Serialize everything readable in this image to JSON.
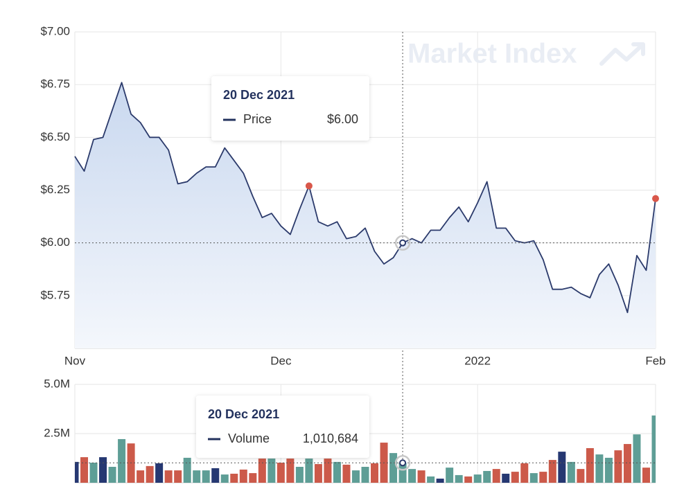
{
  "chart_data": [
    {
      "type": "line",
      "watermark": "Market Index",
      "categories": [
        "Nov",
        null,
        null,
        null,
        null,
        null,
        null,
        null,
        null,
        null,
        null,
        null,
        null,
        null,
        null,
        null,
        null,
        null,
        null,
        null,
        null,
        null,
        "Dec",
        null,
        null,
        null,
        null,
        null,
        null,
        null,
        null,
        null,
        null,
        null,
        null,
        null,
        null,
        null,
        null,
        null,
        null,
        null,
        null,
        "2022",
        null,
        null,
        null,
        null,
        null,
        null,
        null,
        null,
        null,
        null,
        null,
        null,
        null,
        null,
        null,
        null,
        null,
        null,
        "Feb"
      ],
      "series": [
        {
          "name": "Price",
          "color": "#2b3a6b",
          "values": [
            6.41,
            6.34,
            6.49,
            6.5,
            6.63,
            6.76,
            6.61,
            6.57,
            6.5,
            6.5,
            6.44,
            6.28,
            6.29,
            6.33,
            6.36,
            6.36,
            6.45,
            6.39,
            6.33,
            6.22,
            6.12,
            6.14,
            6.08,
            6.04,
            6.16,
            6.27,
            6.1,
            6.08,
            6.1,
            6.02,
            6.03,
            6.07,
            5.96,
            5.9,
            5.93,
            6.0,
            6.02,
            6.0,
            6.06,
            6.06,
            6.12,
            6.17,
            6.1,
            6.19,
            6.29,
            6.07,
            6.07,
            6.01,
            6.0,
            6.01,
            5.92,
            5.78,
            5.78,
            5.79,
            5.76,
            5.74,
            5.85,
            5.9,
            5.8,
            5.67,
            5.94,
            5.87,
            6.21
          ]
        }
      ],
      "highlight_indices": [
        25,
        62
      ],
      "highlight_color": "#d9574a",
      "ylim": [
        5.5,
        7.0
      ],
      "yticks": [
        {
          "value": 5.75,
          "label": "$5.75"
        },
        {
          "value": 6.0,
          "label": "$6.00"
        },
        {
          "value": 6.25,
          "label": "$6.25"
        },
        {
          "value": 6.5,
          "label": "$6.50"
        },
        {
          "value": 6.75,
          "label": "$6.75"
        },
        {
          "value": 7.0,
          "label": "$7.00"
        }
      ],
      "grid": true,
      "tooltip": {
        "index": 35,
        "date": "20 Dec 2021",
        "label": "Price",
        "value": 6.0,
        "value_label": "$6.00"
      }
    },
    {
      "type": "bar",
      "series": [
        {
          "name": "Volume",
          "values": [
            1060000,
            1300000,
            1020000,
            1300000,
            810000,
            2220000,
            2000000,
            630000,
            850000,
            990000,
            630000,
            630000,
            1270000,
            630000,
            630000,
            740000,
            420000,
            460000,
            670000,
            490000,
            1230000,
            1230000,
            1020000,
            1230000,
            810000,
            1230000,
            950000,
            1230000,
            1060000,
            920000,
            630000,
            810000,
            990000,
            2040000,
            1510000,
            1010684,
            700000,
            630000,
            320000,
            210000,
            770000,
            390000,
            320000,
            420000,
            600000,
            700000,
            460000,
            560000,
            990000,
            490000,
            560000,
            1160000,
            1580000,
            1060000,
            700000,
            1760000,
            1440000,
            1270000,
            1650000,
            1970000,
            2460000,
            770000,
            3420000
          ],
          "colors": [
            "#263872",
            "#cc5a4a",
            "#5e9e96",
            "#263872",
            "#5e9e96",
            "#5e9e96",
            "#cc5a4a",
            "#cc5a4a",
            "#cc5a4a",
            "#263872",
            "#cc5a4a",
            "#cc5a4a",
            "#5e9e96",
            "#5e9e96",
            "#5e9e96",
            "#263872",
            "#5e9e96",
            "#cc5a4a",
            "#cc5a4a",
            "#cc5a4a",
            "#cc5a4a",
            "#5e9e96",
            "#cc5a4a",
            "#cc5a4a",
            "#5e9e96",
            "#5e9e96",
            "#cc5a4a",
            "#cc5a4a",
            "#5e9e96",
            "#cc5a4a",
            "#5e9e96",
            "#5e9e96",
            "#cc5a4a",
            "#cc5a4a",
            "#5e9e96",
            "#5e9e96",
            "#5e9e96",
            "#cc5a4a",
            "#5e9e96",
            "#263872",
            "#5e9e96",
            "#5e9e96",
            "#cc5a4a",
            "#5e9e96",
            "#5e9e96",
            "#cc5a4a",
            "#263872",
            "#cc5a4a",
            "#cc5a4a",
            "#5e9e96",
            "#cc5a4a",
            "#cc5a4a",
            "#263872",
            "#5e9e96",
            "#cc5a4a",
            "#cc5a4a",
            "#5e9e96",
            "#5e9e96",
            "#cc5a4a",
            "#cc5a4a",
            "#5e9e96",
            "#cc5a4a",
            "#5e9e96"
          ]
        }
      ],
      "ylim": [
        0,
        5000000
      ],
      "yticks": [
        {
          "value": 2500000,
          "label": "2.5M"
        },
        {
          "value": 5000000,
          "label": "5.0M"
        }
      ],
      "grid": true,
      "tooltip": {
        "index": 35,
        "date": "20 Dec 2021",
        "label": "Volume",
        "value": 1010684,
        "value_label": "1,010,684"
      }
    }
  ]
}
